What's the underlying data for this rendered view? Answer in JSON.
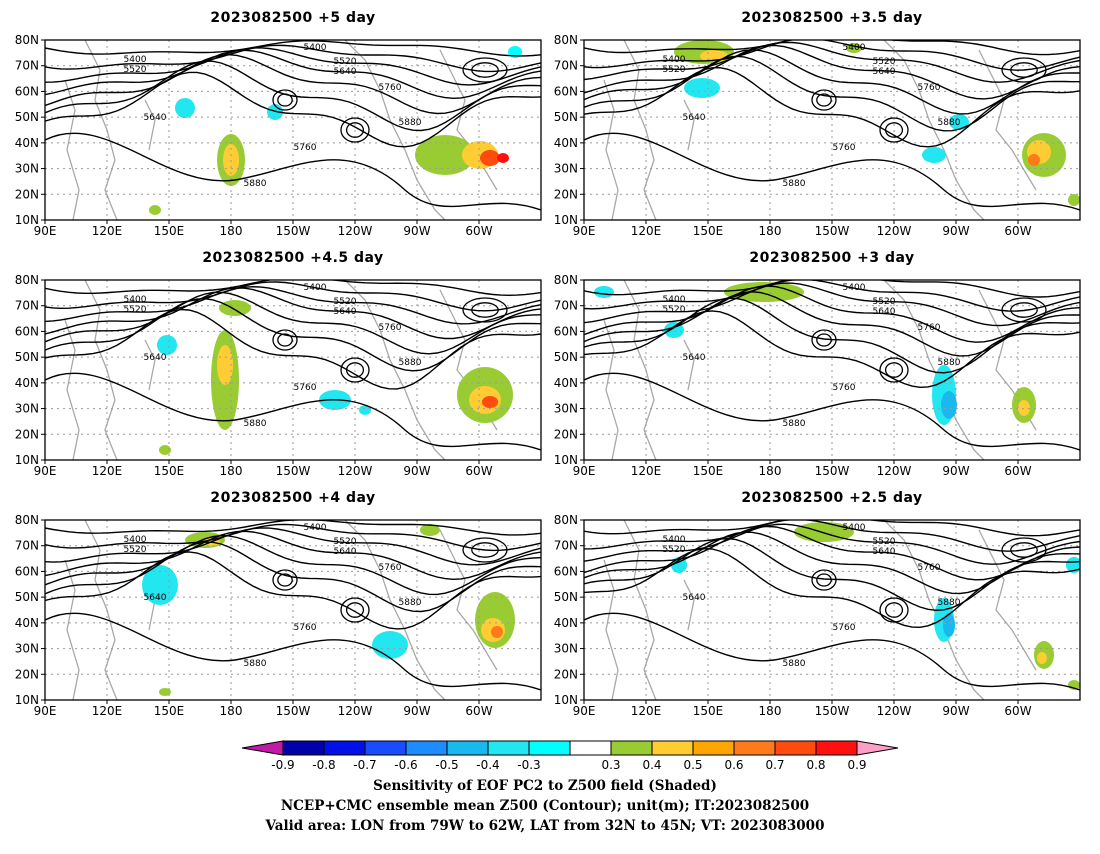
{
  "panels": [
    {
      "title": "2023082500 +5 day"
    },
    {
      "title": "2023082500 +3.5 day"
    },
    {
      "title": "2023082500 +4.5 day"
    },
    {
      "title": "2023082500 +3 day"
    },
    {
      "title": "2023082500 +4 day"
    },
    {
      "title": "2023082500 +2.5 day"
    }
  ],
  "lat_ticks": [
    "80N",
    "70N",
    "60N",
    "50N",
    "40N",
    "30N",
    "20N",
    "10N"
  ],
  "lon_ticks": [
    "90E",
    "120E",
    "150E",
    "180",
    "150W",
    "120W",
    "90W",
    "60W"
  ],
  "contour_labels": [
    "5400",
    "5520",
    "5640",
    "5760",
    "5880"
  ],
  "colorbar": {
    "ticks": [
      "-0.9",
      "-0.8",
      "-0.7",
      "-0.6",
      "-0.5",
      "-0.4",
      "-0.3",
      "0.3",
      "0.4",
      "0.5",
      "0.6",
      "0.7",
      "0.8",
      "0.9"
    ],
    "colors": [
      "#c21aa6",
      "#0000a8",
      "#0010e8",
      "#1a4cff",
      "#1e8cff",
      "#19b9f0",
      "#22e6f0",
      "#00ffff",
      "#ffffff",
      "#99cc33",
      "#ffcc33",
      "#ffa500",
      "#ff7a1a",
      "#ff4a10",
      "#ff1010",
      "#ff9fc8"
    ]
  },
  "captions": {
    "line1": "Sensitivity of EOF PC2 to Z500 field (Shaded)",
    "line2": "NCEP+CMC ensemble mean Z500 (Contour); unit(m); IT:2023082500",
    "line3": "Valid area: LON from 79W to 62W, LAT from 32N to 45N; VT: 2023083000"
  }
}
